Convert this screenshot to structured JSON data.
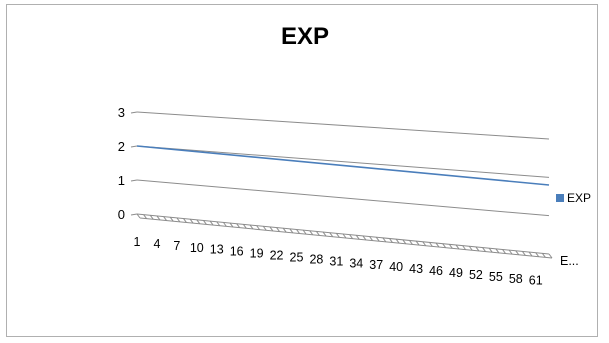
{
  "chart_data": {
    "type": "line",
    "title": "EXP",
    "xlabel": "",
    "ylabel": "",
    "ylim": [
      0,
      3
    ],
    "y_ticks": [
      "0",
      "1",
      "2",
      "3"
    ],
    "x_range": [
      1,
      63
    ],
    "x_ticks": [
      "1",
      "4",
      "7",
      "10",
      "13",
      "16",
      "19",
      "22",
      "25",
      "28",
      "31",
      "34",
      "37",
      "40",
      "43",
      "46",
      "49",
      "52",
      "55",
      "58",
      "61"
    ],
    "depth_axis_label": "E...",
    "grid": true,
    "legend_position": "right",
    "series": [
      {
        "name": "EXP",
        "color": "#4a7ebb",
        "x": [
          1,
          63
        ],
        "values": [
          2.0,
          1.8
        ]
      }
    ]
  }
}
